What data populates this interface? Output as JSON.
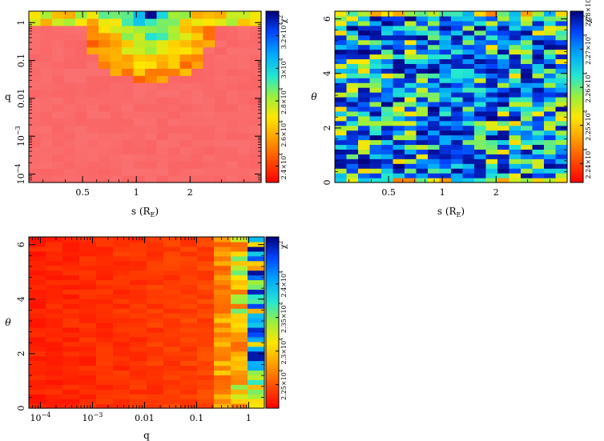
{
  "chart_data": [
    {
      "type": "heatmap",
      "id": "s-q",
      "xlabel": "s (R",
      "xlabel_sub": "E",
      "xlabel_close": ")",
      "ylabel": "q",
      "xscale": "log",
      "yscale": "log",
      "xlim": [
        0.25,
        5.0
      ],
      "ylim": [
        6e-05,
        2.0
      ],
      "xticks": [
        {
          "value": 0.5,
          "label": "0.5"
        },
        {
          "value": 1,
          "label": "1"
        },
        {
          "value": 2,
          "label": "2"
        }
      ],
      "yticks": [
        {
          "value": 0.0001,
          "label": "10",
          "sup": "−4"
        },
        {
          "value": 0.001,
          "label": "10",
          "sup": "−3"
        },
        {
          "value": 0.01,
          "label": "0.01"
        },
        {
          "value": 0.1,
          "label": "0.1"
        },
        {
          "value": 1,
          "label": "1"
        }
      ],
      "nx": 20,
      "ny": 24,
      "colorbar": {
        "title": "χ",
        "title_sup": "2",
        "range": [
          23000,
          33500
        ],
        "ticks": [
          {
            "value": 24000,
            "label": "2.4×10",
            "sup": "4"
          },
          {
            "value": 26000,
            "label": "2.6×10",
            "sup": "4"
          },
          {
            "value": 28000,
            "label": "2.8×10",
            "sup": "4"
          },
          {
            "value": 30000,
            "label": "3×10",
            "sup": "4"
          },
          {
            "value": 32000,
            "label": "3.2×10",
            "sup": "4"
          }
        ]
      }
    },
    {
      "type": "heatmap",
      "id": "s-theta",
      "xlabel": "s (R",
      "xlabel_sub": "E",
      "xlabel_close": ")",
      "ylabel": "θ",
      "xscale": "log",
      "yscale": "linear",
      "xlim": [
        0.25,
        5.0
      ],
      "ylim": [
        0,
        6.283
      ],
      "xticks": [
        {
          "value": 0.5,
          "label": "0.5"
        },
        {
          "value": 1,
          "label": "1"
        },
        {
          "value": 2,
          "label": "2"
        }
      ],
      "yticks": [
        {
          "value": 0,
          "label": "0"
        },
        {
          "value": 2,
          "label": "2"
        },
        {
          "value": 4,
          "label": "4"
        },
        {
          "value": 6,
          "label": "6"
        }
      ],
      "nx": 20,
      "ny": 36,
      "colorbar": {
        "title": "χ",
        "title_sup": "2",
        "range": [
          22350,
          22800
        ],
        "ticks": [
          {
            "value": 22400,
            "label": "2.24×10",
            "sup": "4"
          },
          {
            "value": 22500,
            "label": "2.25×10",
            "sup": "4"
          },
          {
            "value": 22600,
            "label": "2.26×10",
            "sup": "4"
          },
          {
            "value": 22700,
            "label": "2.27×10",
            "sup": "4"
          },
          {
            "value": 22800,
            "label": "2.28×10",
            "sup": "4"
          }
        ]
      }
    },
    {
      "type": "heatmap",
      "id": "q-theta",
      "xlabel": "q",
      "xlabel_sub": "",
      "xlabel_close": "",
      "ylabel": "θ",
      "xscale": "log",
      "yscale": "linear",
      "xlim": [
        6e-05,
        2.0
      ],
      "ylim": [
        0,
        6.283
      ],
      "xticks": [
        {
          "value": 0.0001,
          "label": "10",
          "sup": "−4"
        },
        {
          "value": 0.001,
          "label": "10",
          "sup": "−3"
        },
        {
          "value": 0.01,
          "label": "0.01"
        },
        {
          "value": 0.1,
          "label": "0.1"
        },
        {
          "value": 1,
          "label": "1"
        }
      ],
      "yticks": [
        {
          "value": 0,
          "label": "0"
        },
        {
          "value": 2,
          "label": "2"
        },
        {
          "value": 4,
          "label": "4"
        },
        {
          "value": 6,
          "label": "6"
        }
      ],
      "nx": 14,
      "ny": 36,
      "colorbar": {
        "title": "χ",
        "title_sup": "2",
        "range": [
          22150,
          24700
        ],
        "ticks": [
          {
            "value": 22500,
            "label": "2.25×10",
            "sup": "4"
          },
          {
            "value": 23000,
            "label": "2.3×10",
            "sup": "4"
          },
          {
            "value": 23500,
            "label": "2.35×10",
            "sup": "4"
          },
          {
            "value": 24000,
            "label": "2.4×10",
            "sup": "4"
          }
        ]
      }
    }
  ]
}
